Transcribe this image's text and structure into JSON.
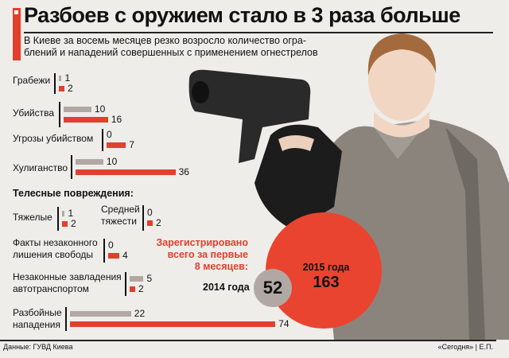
{
  "title": "Разбоев с оружием стало в 3 раза больше",
  "subtitle_lines": [
    "В Киеве за восемь месяцев резко возросло количество огра-",
    "блений и нападений совершенных с применением огнестрелов"
  ],
  "section_heading": "Телесные повреждения:",
  "totals": {
    "label": [
      "Зарегистрировано",
      "всего за первые",
      "8 месяцев:"
    ],
    "y2014_label": "2014 года",
    "y2014_value": "52",
    "y2015_label": "2015 года",
    "y2015_value": "163"
  },
  "source": "Данные: ГУВД Киева",
  "credit": "«Сегодня» | Е.П.",
  "colors": {
    "y2014": "#b2a8a3",
    "y2015": "#e2402c"
  },
  "chart_data": {
    "type": "bar",
    "orientation": "horizontal",
    "series_colors": [
      "#b2a8a3",
      "#e2402c"
    ],
    "categories": [
      [
        "Грабежи"
      ],
      [
        "Убийства"
      ],
      [
        "Угрозы убийством"
      ],
      [
        "Хулиганство"
      ],
      [
        "Тяжелые"
      ],
      [
        "Средней",
        "тяжести"
      ],
      [
        "Факты незаконного",
        "лишения свободы"
      ],
      [
        "Незаконные завладения",
        "автотранспортом"
      ],
      [
        "Разбойные",
        "нападения"
      ]
    ],
    "series": [
      {
        "values": [
          1,
          10,
          0,
          10,
          1,
          0,
          0,
          5,
          22
        ]
      },
      {
        "values": [
          2,
          16,
          7,
          36,
          2,
          2,
          4,
          2,
          74
        ]
      }
    ]
  }
}
